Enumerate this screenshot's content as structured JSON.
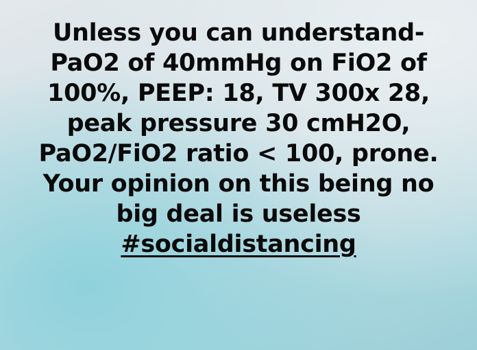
{
  "story": {
    "lines": [
      "Unless you can understand-",
      "PaO2 of 40mmHg on FiO2 of",
      "100%, PEEP: 18, TV 300x 28,",
      "peak pressure 30 cmH2O,",
      "PaO2/FiO2 ratio < 100, prone.",
      "Your opinion on this being no",
      "big deal is useless"
    ],
    "hashtag": "#socialdistancing"
  },
  "colors": {
    "text": "#0a0a0a",
    "background_top": "#e3e8eb",
    "background_bottom": "#9ccfd8"
  }
}
